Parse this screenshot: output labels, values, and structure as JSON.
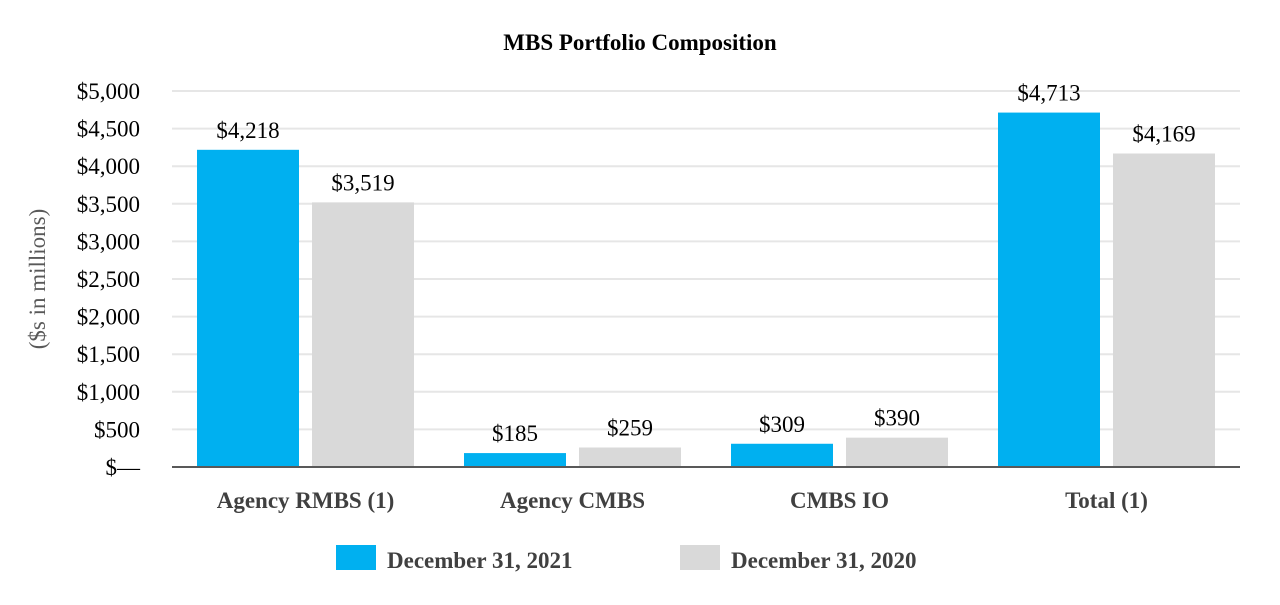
{
  "chart_data": {
    "type": "bar",
    "title": "MBS Portfolio Composition",
    "xlabel": "",
    "ylabel": "($s in millions)",
    "categories": [
      "Agency RMBS (1)",
      "Agency CMBS",
      "CMBS IO",
      "Total (1)"
    ],
    "series": [
      {
        "name": "December 31, 2021",
        "color": "#00B0F0",
        "values": [
          4218,
          185,
          309,
          4713
        ],
        "labels": [
          "$4,218",
          "$185",
          "$309",
          "$4,713"
        ]
      },
      {
        "name": "December 31, 2020",
        "color": "#D9D9D9",
        "values": [
          3519,
          259,
          390,
          4169
        ],
        "labels": [
          "$3,519",
          "$259",
          "$390",
          "$4,169"
        ]
      }
    ],
    "ylim": [
      0,
      5000
    ],
    "yticks": [
      0,
      500,
      1000,
      1500,
      2000,
      2500,
      3000,
      3500,
      4000,
      4500,
      5000
    ],
    "ytick_labels": [
      "$—",
      "$500",
      "$1,000",
      "$1,500",
      "$2,000",
      "$2,500",
      "$3,000",
      "$3,500",
      "$4,000",
      "$4,500",
      "$5,000"
    ],
    "grid": true,
    "legend_position": "bottom"
  },
  "colors": {
    "grid": "#E6E6E6",
    "axis": "#595959"
  }
}
